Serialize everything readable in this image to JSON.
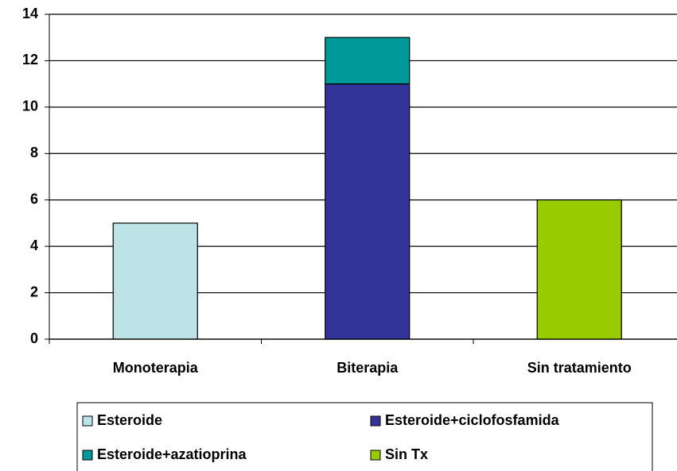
{
  "chart_data": {
    "type": "stacked_bar",
    "categories": [
      "Monoterapia",
      "Biterapia",
      "Sin tratamiento"
    ],
    "series": [
      {
        "name": "Esteroide",
        "color": "#bde3e6",
        "values": [
          5,
          null,
          null
        ]
      },
      {
        "name": "Esteroide+ciclofosfamida",
        "color": "#333399",
        "values": [
          null,
          11,
          null
        ]
      },
      {
        "name": "Esteroide+azatioprina",
        "color": "#009999",
        "values": [
          null,
          2,
          null
        ]
      },
      {
        "name": "Sin Tx",
        "color": "#99cc00",
        "values": [
          null,
          null,
          6
        ]
      }
    ],
    "ylim": [
      0,
      14
    ],
    "yticks": [
      0,
      2,
      4,
      6,
      8,
      10,
      12,
      14
    ],
    "grid": true,
    "legend": "bottom"
  }
}
